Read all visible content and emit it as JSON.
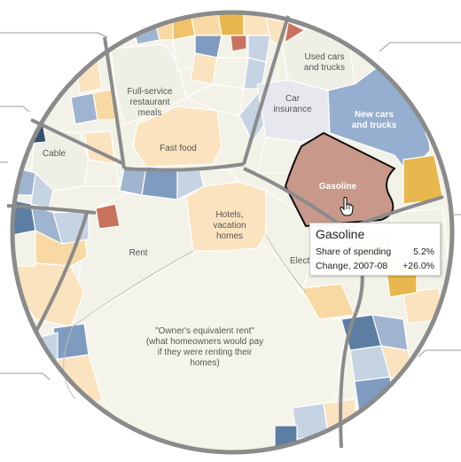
{
  "regions": {
    "used_cars": "Used cars\nand trucks",
    "new_cars": "New cars\nand trucks",
    "car_insurance": "Car\ninsurance",
    "gasoline": "Gasoline",
    "restaurant": "Full-service\nrestaurant\nmeals",
    "fast_food": "Fast food",
    "cable": "Cable",
    "hotels": "Hotels,\nvacation\nhomes",
    "rent": "Rent",
    "owners_rent": "\"Owner's equivalent rent\"\n(what homeowners would pay\nif they were renting their\nhomes)",
    "electricity": "Elect"
  },
  "tooltip": {
    "title": "Gasoline",
    "share_label": "Share of spending",
    "share_value": "5.2%",
    "change_label": "Change, 2007-08",
    "change_value": "+26.0%"
  },
  "colors": {
    "gasoline": "#c8998a",
    "new_cars": "#96afd0",
    "accent_orange": "#e8b84e",
    "pale_cream": "#fbe3bf",
    "light_gray": "#efefe5",
    "border_gray": "#888888"
  }
}
